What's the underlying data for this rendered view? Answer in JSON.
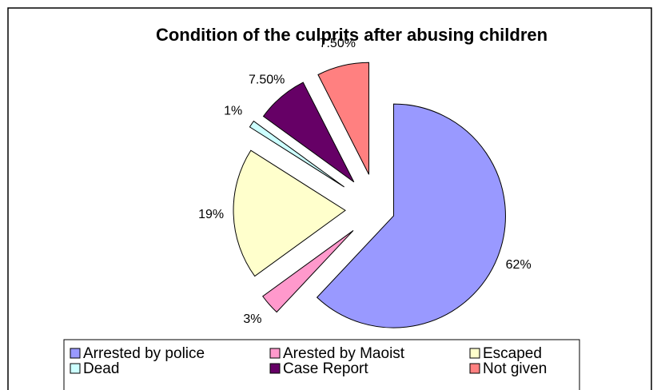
{
  "chart_data": {
    "type": "pie",
    "title": "Condition of the culprits after abusing children",
    "categories": [
      "Arrested by police",
      "Arested by Maoist",
      "Escaped",
      "Dead",
      "Case Report",
      "Not given"
    ],
    "values": [
      62,
      3,
      19,
      1,
      7.5,
      7.5
    ],
    "value_labels": [
      "62%",
      "3%",
      "19%",
      "1%",
      "7.50%",
      "7.50%"
    ],
    "colors": [
      "#9999ff",
      "#ff99cc",
      "#ffffcc",
      "#ccffff",
      "#660066",
      "#ff8080"
    ],
    "legend": "bottom"
  }
}
